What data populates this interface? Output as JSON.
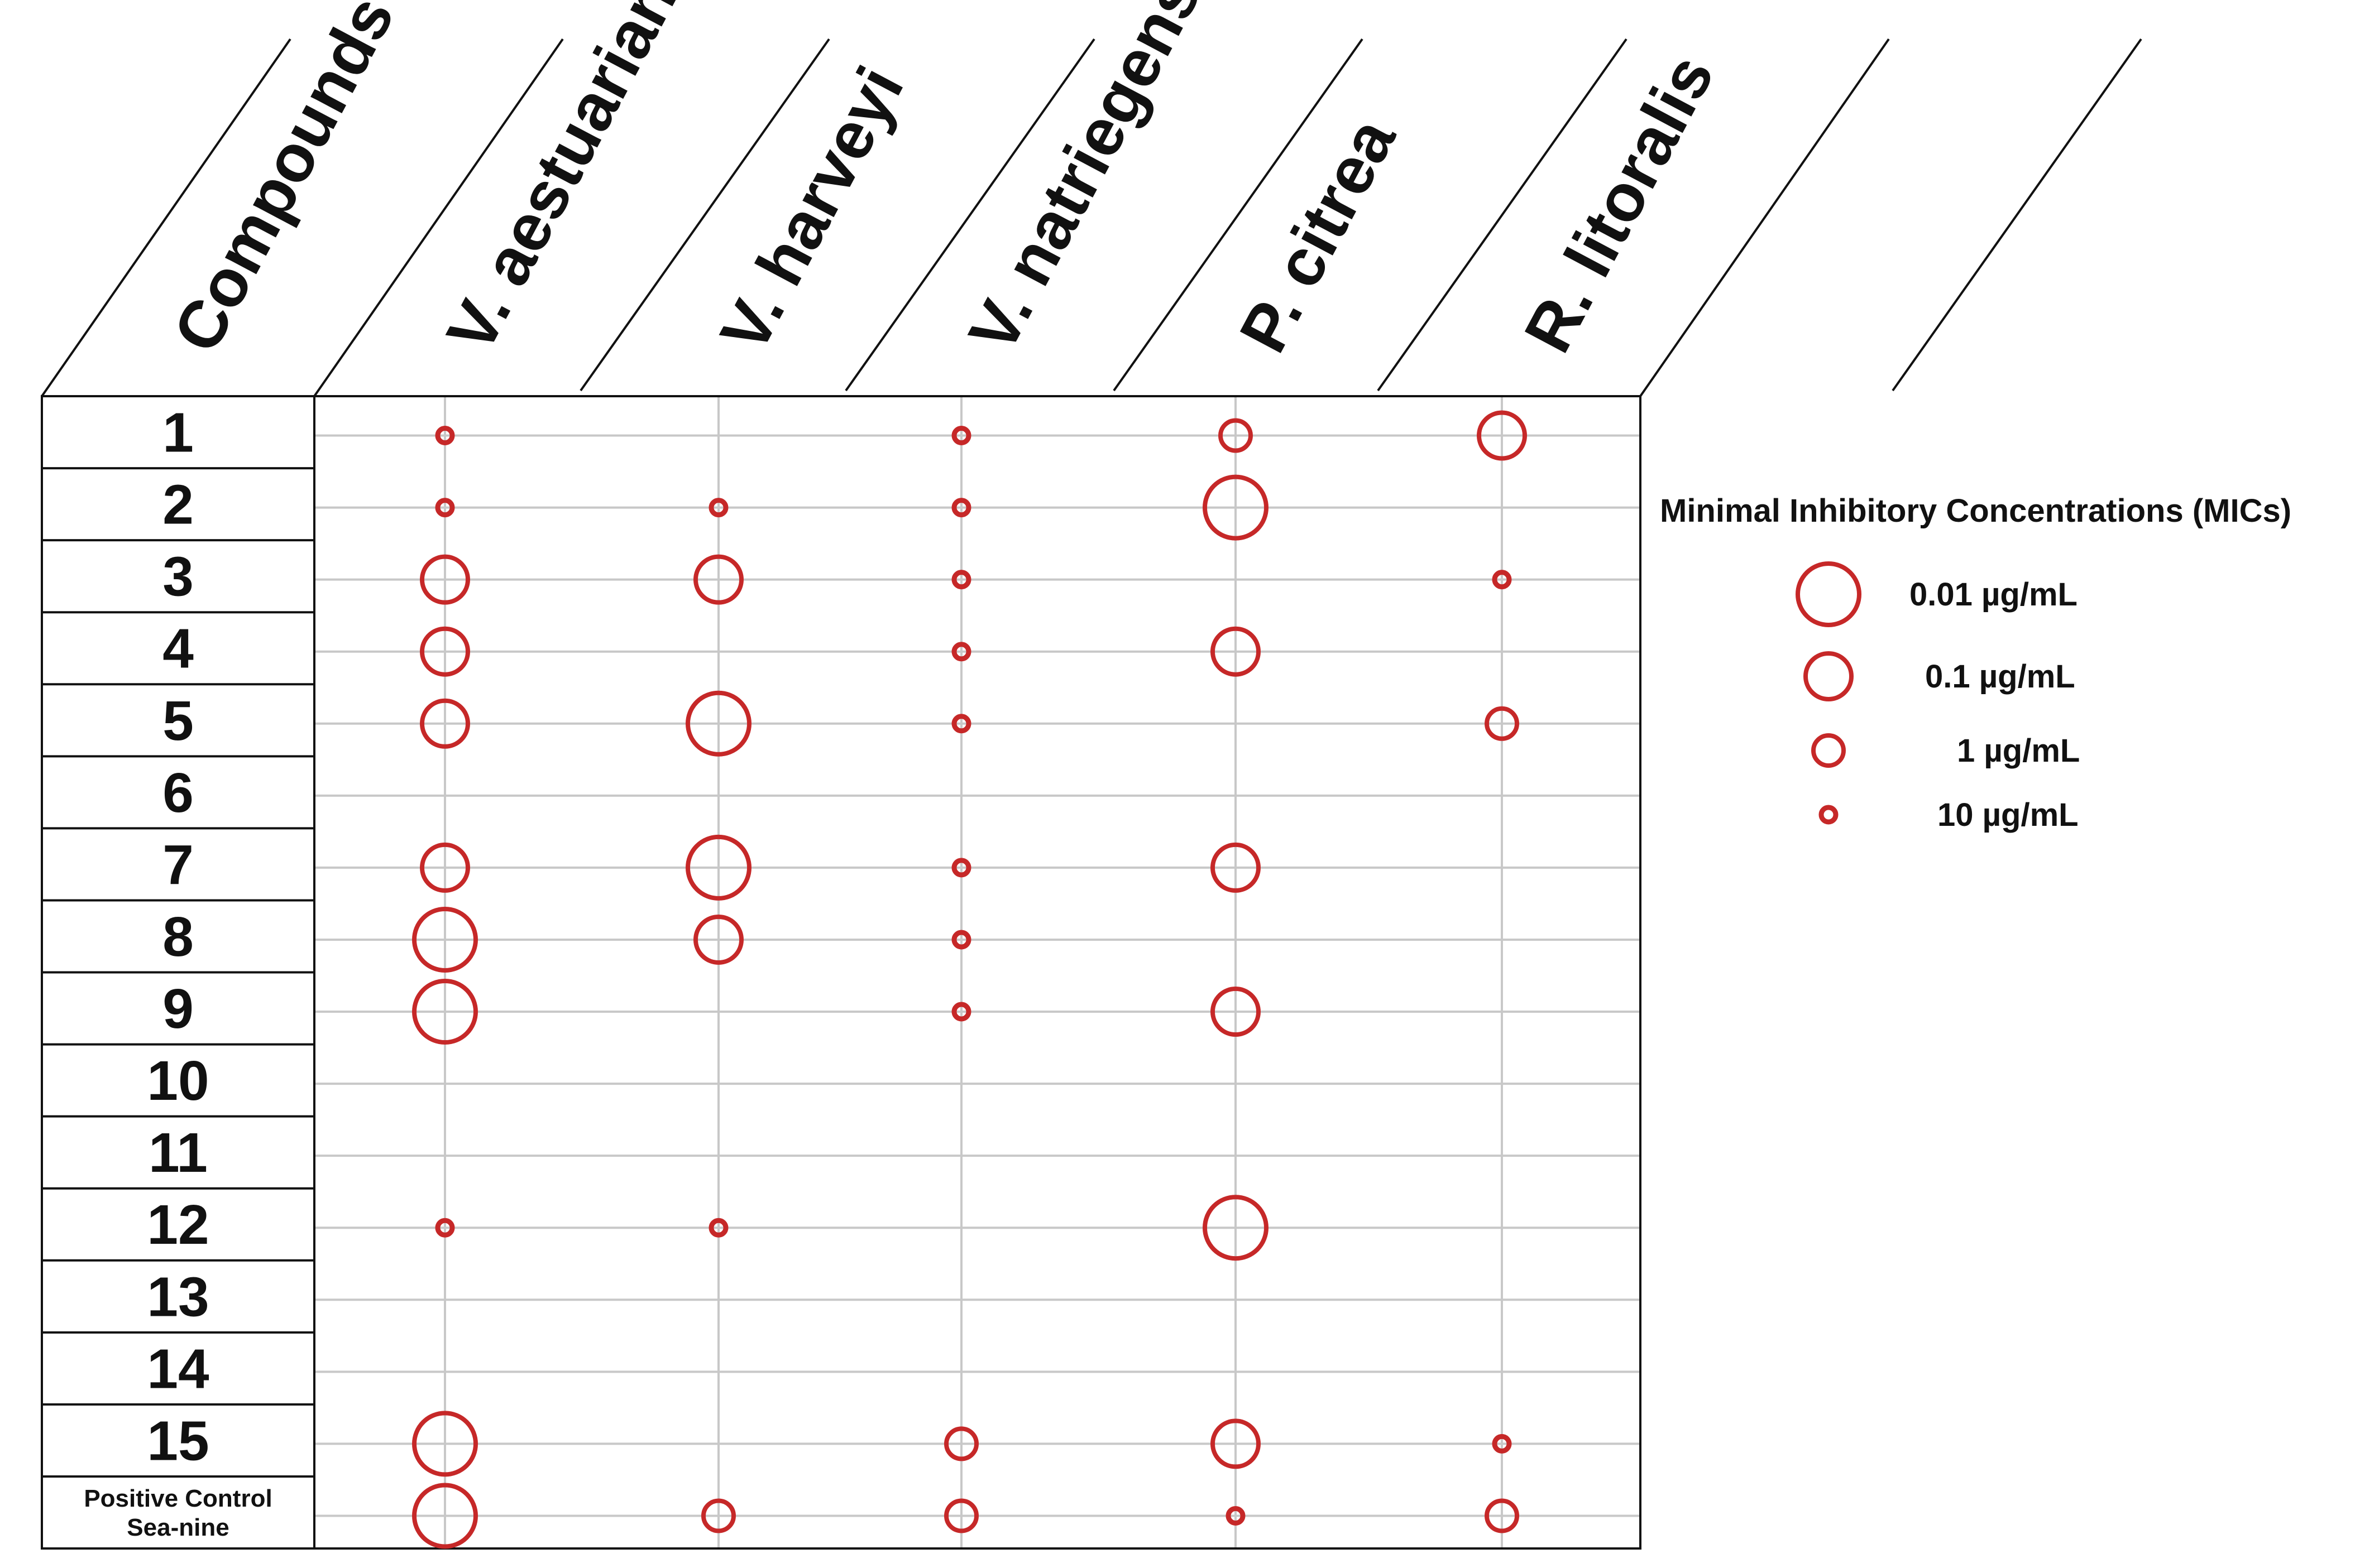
{
  "chart_data": {
    "type": "bubble-matrix",
    "title": "Minimal Inhibitory Concentrations (MICs)",
    "row_header": "Compounds",
    "columns": [
      "V. aestuarianus",
      "V. harveyi",
      "V. natriegens",
      "P. citrea",
      "R. litoralis"
    ],
    "rows": [
      {
        "label": "1",
        "values": [
          10,
          null,
          10,
          1,
          0.1
        ]
      },
      {
        "label": "2",
        "values": [
          10,
          10,
          10,
          0.01,
          null
        ]
      },
      {
        "label": "3",
        "values": [
          0.1,
          0.1,
          10,
          null,
          10
        ]
      },
      {
        "label": "4",
        "values": [
          0.1,
          null,
          10,
          0.1,
          null
        ]
      },
      {
        "label": "5",
        "values": [
          0.1,
          0.01,
          10,
          null,
          1
        ]
      },
      {
        "label": "6",
        "values": [
          null,
          null,
          null,
          null,
          null
        ]
      },
      {
        "label": "7",
        "values": [
          0.1,
          0.01,
          10,
          0.1,
          null
        ]
      },
      {
        "label": "8",
        "values": [
          0.01,
          0.1,
          10,
          null,
          null
        ]
      },
      {
        "label": "9",
        "values": [
          0.01,
          null,
          10,
          0.1,
          null
        ]
      },
      {
        "label": "10",
        "values": [
          null,
          null,
          null,
          null,
          null
        ]
      },
      {
        "label": "11",
        "values": [
          null,
          null,
          null,
          null,
          null
        ]
      },
      {
        "label": "12",
        "values": [
          10,
          10,
          null,
          0.01,
          null
        ]
      },
      {
        "label": "13",
        "values": [
          null,
          null,
          null,
          null,
          null
        ]
      },
      {
        "label": "14",
        "values": [
          null,
          null,
          null,
          null,
          null
        ]
      },
      {
        "label": "15",
        "values": [
          0.01,
          null,
          1,
          0.1,
          10
        ]
      },
      {
        "label": "Positive Control",
        "sublabel": "Sea-nine",
        "values": [
          0.01,
          1,
          1,
          10,
          1
        ]
      }
    ],
    "legend": {
      "title": "Minimal Inhibitory Concentrations (MICs)",
      "items": [
        {
          "value": 0.01,
          "label": "0.01 µg/mL"
        },
        {
          "value": 0.1,
          "label": "0.1 µg/mL"
        },
        {
          "value": 1,
          "label": "1 µg/mL"
        },
        {
          "value": 10,
          "label": "10 µg/mL"
        }
      ]
    },
    "unit": "µg/mL"
  },
  "colors": {
    "marker": "#c62828",
    "grid": "#c8c8c8",
    "border": "#111111",
    "text": "#111111"
  }
}
